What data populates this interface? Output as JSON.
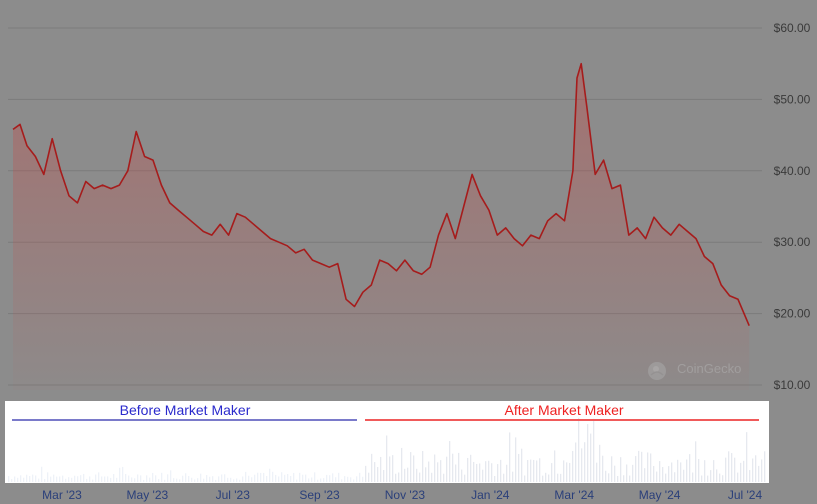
{
  "chart_data": {
    "type": "area",
    "title": "",
    "xlabel": "",
    "ylabel": "",
    "ylim": [
      10,
      60
    ],
    "y_ticks": [
      "$60.00",
      "$50.00",
      "$40.00",
      "$30.00",
      "$20.00",
      "$10.00"
    ],
    "y_tick_values": [
      60,
      50,
      40,
      30,
      20,
      10
    ],
    "x_ticks": [
      "Mar '23",
      "May '23",
      "Jul '23",
      "Sep '23",
      "Nov '23",
      "Jan '24",
      "Mar '24",
      "May '24",
      "Jul '24"
    ],
    "x_tick_dates": [
      "2023-03-01",
      "2023-05-01",
      "2023-07-01",
      "2023-09-01",
      "2023-11-01",
      "2024-01-01",
      "2024-03-01",
      "2024-05-01",
      "2024-07-01"
    ],
    "grid": true,
    "series": [
      {
        "x": [
          "2023-01-25",
          "2023-01-30",
          "2023-02-04",
          "2023-02-10",
          "2023-02-16",
          "2023-02-22",
          "2023-02-28",
          "2023-03-06",
          "2023-03-12",
          "2023-03-18",
          "2023-03-24",
          "2023-03-30",
          "2023-04-05",
          "2023-04-11",
          "2023-04-17",
          "2023-04-23",
          "2023-04-29",
          "2023-05-05",
          "2023-05-11",
          "2023-05-17",
          "2023-05-23",
          "2023-05-29",
          "2023-06-04",
          "2023-06-10",
          "2023-06-16",
          "2023-06-22",
          "2023-06-28",
          "2023-07-04",
          "2023-07-10",
          "2023-07-16",
          "2023-07-22",
          "2023-07-28",
          "2023-08-03",
          "2023-08-09",
          "2023-08-15",
          "2023-08-21",
          "2023-08-27",
          "2023-09-02",
          "2023-09-08",
          "2023-09-14",
          "2023-09-20",
          "2023-09-26",
          "2023-10-02",
          "2023-10-08",
          "2023-10-14",
          "2023-10-20",
          "2023-10-26",
          "2023-11-01",
          "2023-11-07",
          "2023-11-13",
          "2023-11-19",
          "2023-11-25",
          "2023-12-01",
          "2023-12-07",
          "2023-12-13",
          "2023-12-19",
          "2023-12-25",
          "2023-12-31",
          "2024-01-06",
          "2024-01-12",
          "2024-01-18",
          "2024-01-24",
          "2024-01-30",
          "2024-02-05",
          "2024-02-11",
          "2024-02-17",
          "2024-02-23",
          "2024-02-29",
          "2024-03-03",
          "2024-03-06",
          "2024-03-10",
          "2024-03-16",
          "2024-03-22",
          "2024-03-28",
          "2024-04-03",
          "2024-04-09",
          "2024-04-15",
          "2024-04-21",
          "2024-04-27",
          "2024-05-03",
          "2024-05-09",
          "2024-05-15",
          "2024-05-21",
          "2024-05-27",
          "2024-06-02",
          "2024-06-08",
          "2024-06-14",
          "2024-06-20",
          "2024-06-26",
          "2024-07-04"
        ],
        "values": [
          45.8,
          46.5,
          43.5,
          42.0,
          39.5,
          44.5,
          40.0,
          36.5,
          35.5,
          38.5,
          37.5,
          38.0,
          37.5,
          38.0,
          40.0,
          45.5,
          42.0,
          41.5,
          38.0,
          35.5,
          34.5,
          33.5,
          32.5,
          31.5,
          31.0,
          32.5,
          31.0,
          34.0,
          33.5,
          32.5,
          31.5,
          30.5,
          30.0,
          29.5,
          28.5,
          29.0,
          27.5,
          27.0,
          26.5,
          27.0,
          22.0,
          21.0,
          23.0,
          24.0,
          27.5,
          27.0,
          26.0,
          27.5,
          26.0,
          25.5,
          26.5,
          31.0,
          34.0,
          30.5,
          35.0,
          39.5,
          36.5,
          34.5,
          31.0,
          32.0,
          30.5,
          29.5,
          31.0,
          30.5,
          33.0,
          34.0,
          33.0,
          40.0,
          53.0,
          55.0,
          49.0,
          39.5,
          41.5,
          37.5,
          38.0,
          31.0,
          32.0,
          30.5,
          33.5,
          32.0,
          31.0,
          32.5,
          31.5,
          30.5,
          28.0,
          27.0,
          24.0,
          22.5,
          22.0,
          18.3
        ]
      }
    ],
    "colors": {
      "line": "#a61c1c",
      "fill_top": "#c0504d"
    }
  },
  "watermark": {
    "text": "CoinGecko"
  },
  "annotations": [
    {
      "label": "Before Market Maker",
      "color": "#0000cc"
    },
    {
      "label": "After Market Maker",
      "color": "#ff0000"
    }
  ]
}
